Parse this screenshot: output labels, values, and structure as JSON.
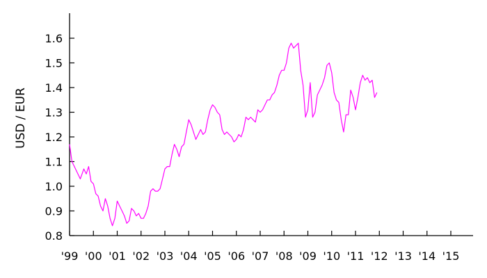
{
  "chart_data": {
    "type": "line",
    "title": "",
    "xlabel": "",
    "ylabel": "USD / EUR",
    "ylim": [
      0.8,
      1.7
    ],
    "xlim": [
      1999,
      2016
    ],
    "grid": false,
    "legend": "none",
    "y_ticks": [
      {
        "value": 0.8,
        "label": "0.8"
      },
      {
        "value": 0.9,
        "label": "0.9"
      },
      {
        "value": 1.0,
        "label": "1.0"
      },
      {
        "value": 1.1,
        "label": "1.1"
      },
      {
        "value": 1.2,
        "label": "1.2"
      },
      {
        "value": 1.3,
        "label": "1.3"
      },
      {
        "value": 1.4,
        "label": "1.4"
      },
      {
        "value": 1.5,
        "label": "1.5"
      },
      {
        "value": 1.6,
        "label": "1.6"
      }
    ],
    "x_ticks": [
      {
        "value": 1999,
        "label": "'99"
      },
      {
        "value": 2000,
        "label": "'00"
      },
      {
        "value": 2001,
        "label": "'01"
      },
      {
        "value": 2002,
        "label": "'02"
      },
      {
        "value": 2003,
        "label": "'03"
      },
      {
        "value": 2004,
        "label": "'04"
      },
      {
        "value": 2005,
        "label": "'05"
      },
      {
        "value": 2006,
        "label": "'06"
      },
      {
        "value": 2007,
        "label": "'07"
      },
      {
        "value": 2008,
        "label": "'08"
      },
      {
        "value": 2009,
        "label": "'09"
      },
      {
        "value": 2010,
        "label": "'10"
      },
      {
        "value": 2011,
        "label": "'11"
      },
      {
        "value": 2012,
        "label": "'12"
      },
      {
        "value": 2013,
        "label": "'13"
      },
      {
        "value": 2014,
        "label": "'14"
      },
      {
        "value": 2015,
        "label": "'15"
      }
    ],
    "series": [
      {
        "color": "#ff00ff",
        "x": [
          1999.0,
          1999.1,
          1999.2,
          1999.3,
          1999.45,
          1999.6,
          1999.7,
          1999.8,
          1999.9,
          2000.0,
          2000.1,
          2000.2,
          2000.3,
          2000.4,
          2000.5,
          2000.6,
          2000.7,
          2000.8,
          2000.9,
          2001.0,
          2001.1,
          2001.2,
          2001.3,
          2001.4,
          2001.5,
          2001.6,
          2001.7,
          2001.8,
          2001.9,
          2002.0,
          2002.1,
          2002.2,
          2002.3,
          2002.4,
          2002.5,
          2002.6,
          2002.7,
          2002.8,
          2002.9,
          2003.0,
          2003.1,
          2003.2,
          2003.3,
          2003.4,
          2003.5,
          2003.6,
          2003.7,
          2003.8,
          2003.9,
          2004.0,
          2004.1,
          2004.2,
          2004.3,
          2004.4,
          2004.5,
          2004.6,
          2004.7,
          2004.8,
          2004.9,
          2005.0,
          2005.1,
          2005.2,
          2005.3,
          2005.4,
          2005.5,
          2005.6,
          2005.7,
          2005.8,
          2005.9,
          2006.0,
          2006.1,
          2006.2,
          2006.3,
          2006.4,
          2006.5,
          2006.6,
          2006.7,
          2006.8,
          2006.9,
          2007.0,
          2007.1,
          2007.2,
          2007.3,
          2007.4,
          2007.5,
          2007.6,
          2007.7,
          2007.8,
          2007.9,
          2008.0,
          2008.1,
          2008.2,
          2008.3,
          2008.4,
          2008.5,
          2008.6,
          2008.7,
          2008.8,
          2008.9,
          2009.0,
          2009.1,
          2009.2,
          2009.3,
          2009.4,
          2009.5,
          2009.6,
          2009.7,
          2009.8,
          2009.9,
          2010.0,
          2010.1,
          2010.2,
          2010.3,
          2010.4,
          2010.5,
          2010.6,
          2010.7,
          2010.8,
          2010.9,
          2011.0,
          2011.1,
          2011.2,
          2011.3,
          2011.4,
          2011.5,
          2011.6,
          2011.7,
          2011.8,
          2011.9
        ],
        "y": [
          1.17,
          1.1,
          1.08,
          1.06,
          1.03,
          1.07,
          1.05,
          1.08,
          1.02,
          1.01,
          0.97,
          0.96,
          0.92,
          0.9,
          0.95,
          0.92,
          0.87,
          0.84,
          0.87,
          0.94,
          0.92,
          0.9,
          0.88,
          0.85,
          0.86,
          0.91,
          0.9,
          0.88,
          0.89,
          0.87,
          0.87,
          0.89,
          0.92,
          0.98,
          0.99,
          0.98,
          0.98,
          0.99,
          1.03,
          1.07,
          1.08,
          1.08,
          1.13,
          1.17,
          1.15,
          1.12,
          1.16,
          1.17,
          1.22,
          1.27,
          1.25,
          1.22,
          1.19,
          1.21,
          1.23,
          1.21,
          1.22,
          1.27,
          1.31,
          1.33,
          1.32,
          1.3,
          1.29,
          1.23,
          1.21,
          1.22,
          1.21,
          1.2,
          1.18,
          1.19,
          1.21,
          1.2,
          1.23,
          1.28,
          1.27,
          1.28,
          1.27,
          1.26,
          1.31,
          1.3,
          1.31,
          1.33,
          1.35,
          1.35,
          1.37,
          1.38,
          1.41,
          1.45,
          1.47,
          1.47,
          1.5,
          1.56,
          1.58,
          1.56,
          1.57,
          1.58,
          1.47,
          1.41,
          1.28,
          1.31,
          1.42,
          1.28,
          1.3,
          1.37,
          1.39,
          1.41,
          1.44,
          1.49,
          1.5,
          1.46,
          1.38,
          1.35,
          1.34,
          1.27,
          1.22,
          1.29,
          1.29,
          1.39,
          1.36,
          1.31,
          1.36,
          1.42,
          1.45,
          1.43,
          1.44,
          1.42,
          1.43,
          1.36,
          1.38
        ]
      }
    ]
  }
}
